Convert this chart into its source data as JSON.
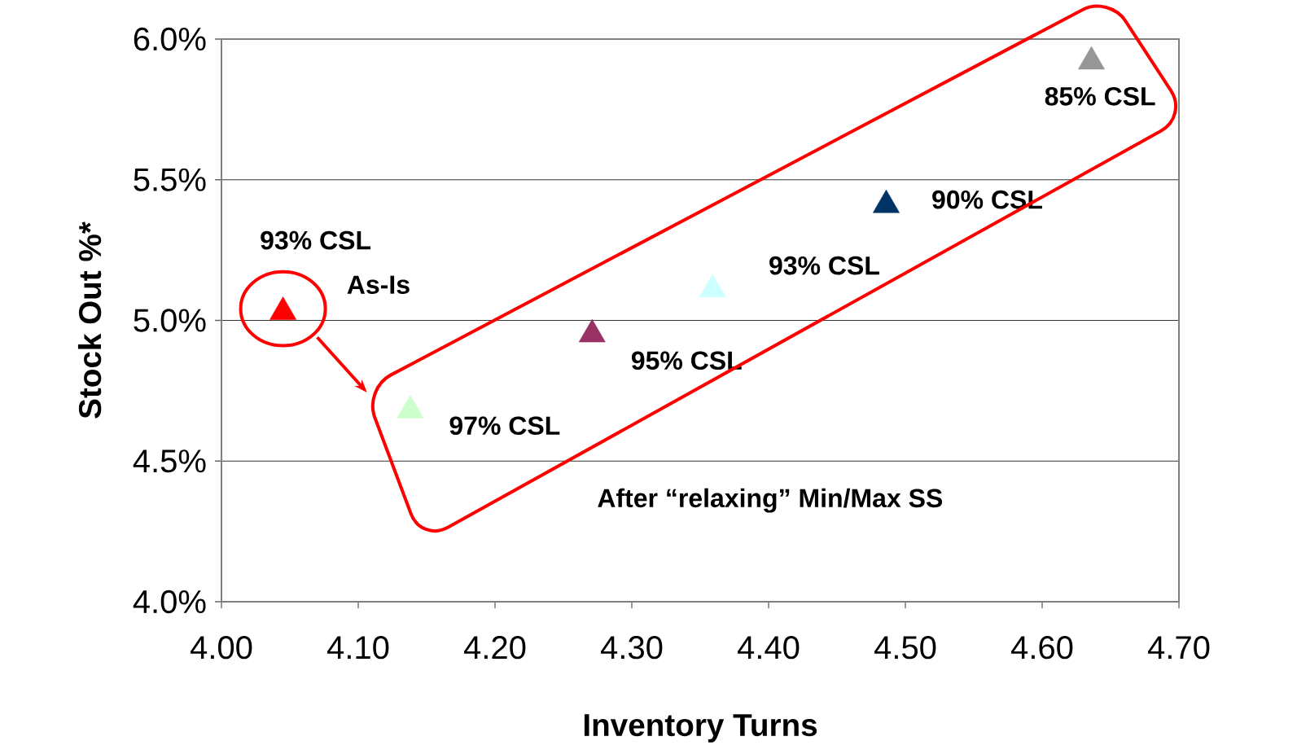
{
  "chart_data": {
    "type": "scatter",
    "xlabel": "Inventory Turns",
    "ylabel": "Stock Out %*",
    "x": [
      4.045,
      4.138,
      4.271,
      4.359,
      4.486,
      4.636
    ],
    "values": [
      5.03,
      4.68,
      4.95,
      5.11,
      5.41,
      5.92
    ],
    "colors": [
      "#ff0000",
      "#ccffcc",
      "#993366",
      "#ccffff",
      "#003366",
      "#969696"
    ],
    "marker": "triangle",
    "xlim": [
      4.0,
      4.7
    ],
    "xticks": [
      {
        "value": 4.0,
        "label": "4.00"
      },
      {
        "value": 4.1,
        "label": "4.10"
      },
      {
        "value": 4.2,
        "label": "4.20"
      },
      {
        "value": 4.3,
        "label": "4.30"
      },
      {
        "value": 4.4,
        "label": "4.40"
      },
      {
        "value": 4.5,
        "label": "4.50"
      },
      {
        "value": 4.6,
        "label": "4.60"
      },
      {
        "value": 4.7,
        "label": "4.70"
      }
    ],
    "ylim": [
      4.0,
      6.0
    ],
    "yticks": [
      {
        "value": 4.0,
        "label": "4.0%"
      },
      {
        "value": 4.5,
        "label": "4.5%"
      },
      {
        "value": 5.0,
        "label": "5.0%"
      },
      {
        "value": 5.5,
        "label": "5.5%"
      },
      {
        "value": 6.0,
        "label": "6.0%"
      }
    ],
    "grid": "y",
    "annotations": [
      {
        "text": "93% CSL",
        "x": 4.045,
        "y": 5.03
      },
      {
        "text": "As-Is",
        "x": 4.045,
        "y": 5.03
      },
      {
        "text": "97% CSL",
        "x": 4.138,
        "y": 4.68
      },
      {
        "text": "95% CSL",
        "x": 4.271,
        "y": 4.95
      },
      {
        "text": "93% CSL",
        "x": 4.359,
        "y": 5.11
      },
      {
        "text": "90% CSL",
        "x": 4.486,
        "y": 5.41
      },
      {
        "text": "85% CSL",
        "x": 4.636,
        "y": 5.92
      },
      "After “relaxing” Min/Max SS"
    ]
  }
}
